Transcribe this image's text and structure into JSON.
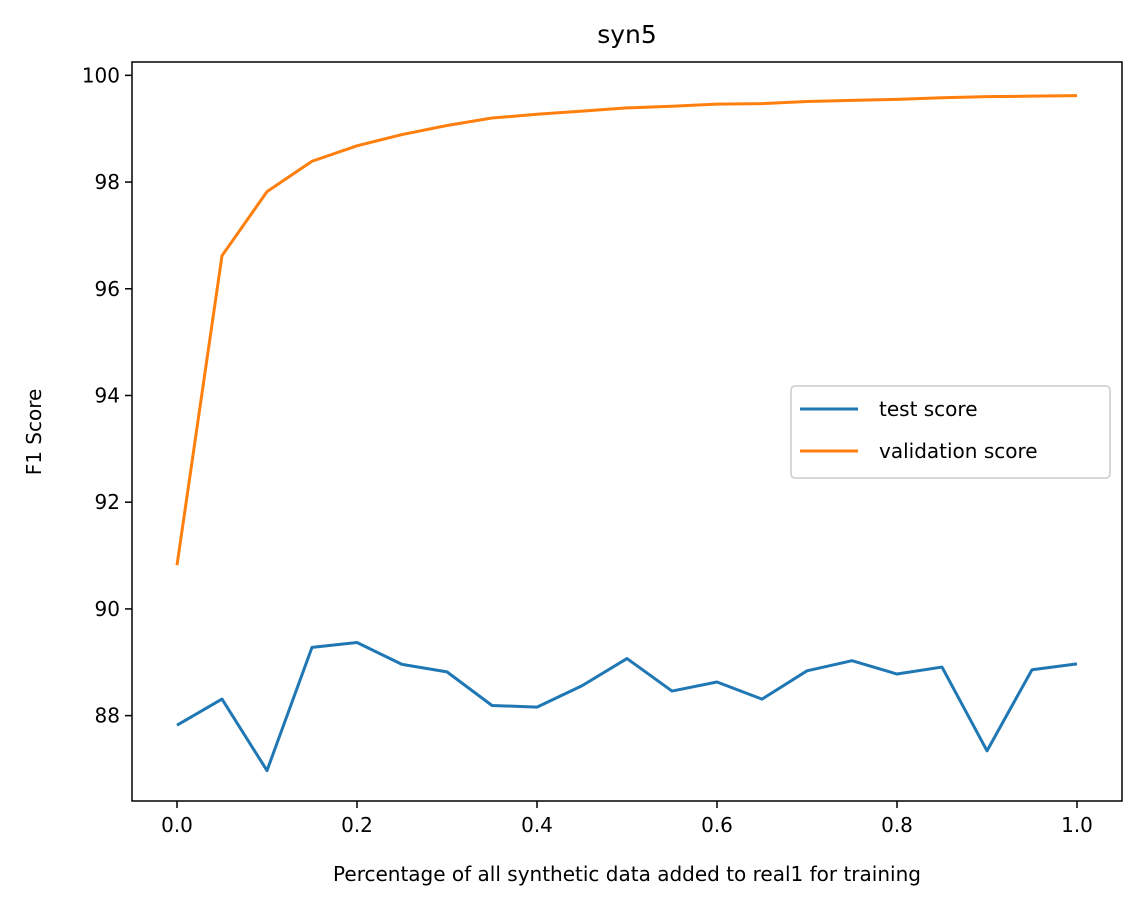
{
  "chart_data": {
    "type": "line",
    "title": "syn5",
    "xlabel": "Percentage of all synthetic data added to real1 for training",
    "ylabel": "F1 Score",
    "xlim": [
      -0.05,
      1.05
    ],
    "ylim": [
      86.4,
      100.25
    ],
    "xticks": [
      0.0,
      0.2,
      0.4,
      0.6,
      0.8,
      1.0
    ],
    "xtick_labels": [
      "0.0",
      "0.2",
      "0.4",
      "0.6",
      "0.8",
      "1.0"
    ],
    "yticks": [
      88,
      90,
      92,
      94,
      96,
      98,
      100
    ],
    "ytick_labels": [
      "88",
      "90",
      "92",
      "94",
      "96",
      "98",
      "100"
    ],
    "grid": false,
    "legend_position": "center-right",
    "x": [
      0.0,
      0.05,
      0.1,
      0.15,
      0.2,
      0.25,
      0.3,
      0.35,
      0.4,
      0.45,
      0.5,
      0.55,
      0.6,
      0.65,
      0.7,
      0.75,
      0.8,
      0.85,
      0.9,
      0.95,
      1.0
    ],
    "series": [
      {
        "name": "test score",
        "color": "#1f77b4",
        "values": [
          87.82,
          88.31,
          86.97,
          89.28,
          89.37,
          88.96,
          88.82,
          88.19,
          88.16,
          88.56,
          89.07,
          88.46,
          88.63,
          88.31,
          88.84,
          89.03,
          88.78,
          88.91,
          87.34,
          88.86,
          88.97
        ]
      },
      {
        "name": "validation score",
        "color": "#ff7f0e",
        "values": [
          90.82,
          96.62,
          97.82,
          98.39,
          98.68,
          98.89,
          99.06,
          99.2,
          99.27,
          99.33,
          99.39,
          99.42,
          99.46,
          99.47,
          99.51,
          99.53,
          99.55,
          99.58,
          99.6,
          99.61,
          99.62
        ]
      }
    ]
  }
}
